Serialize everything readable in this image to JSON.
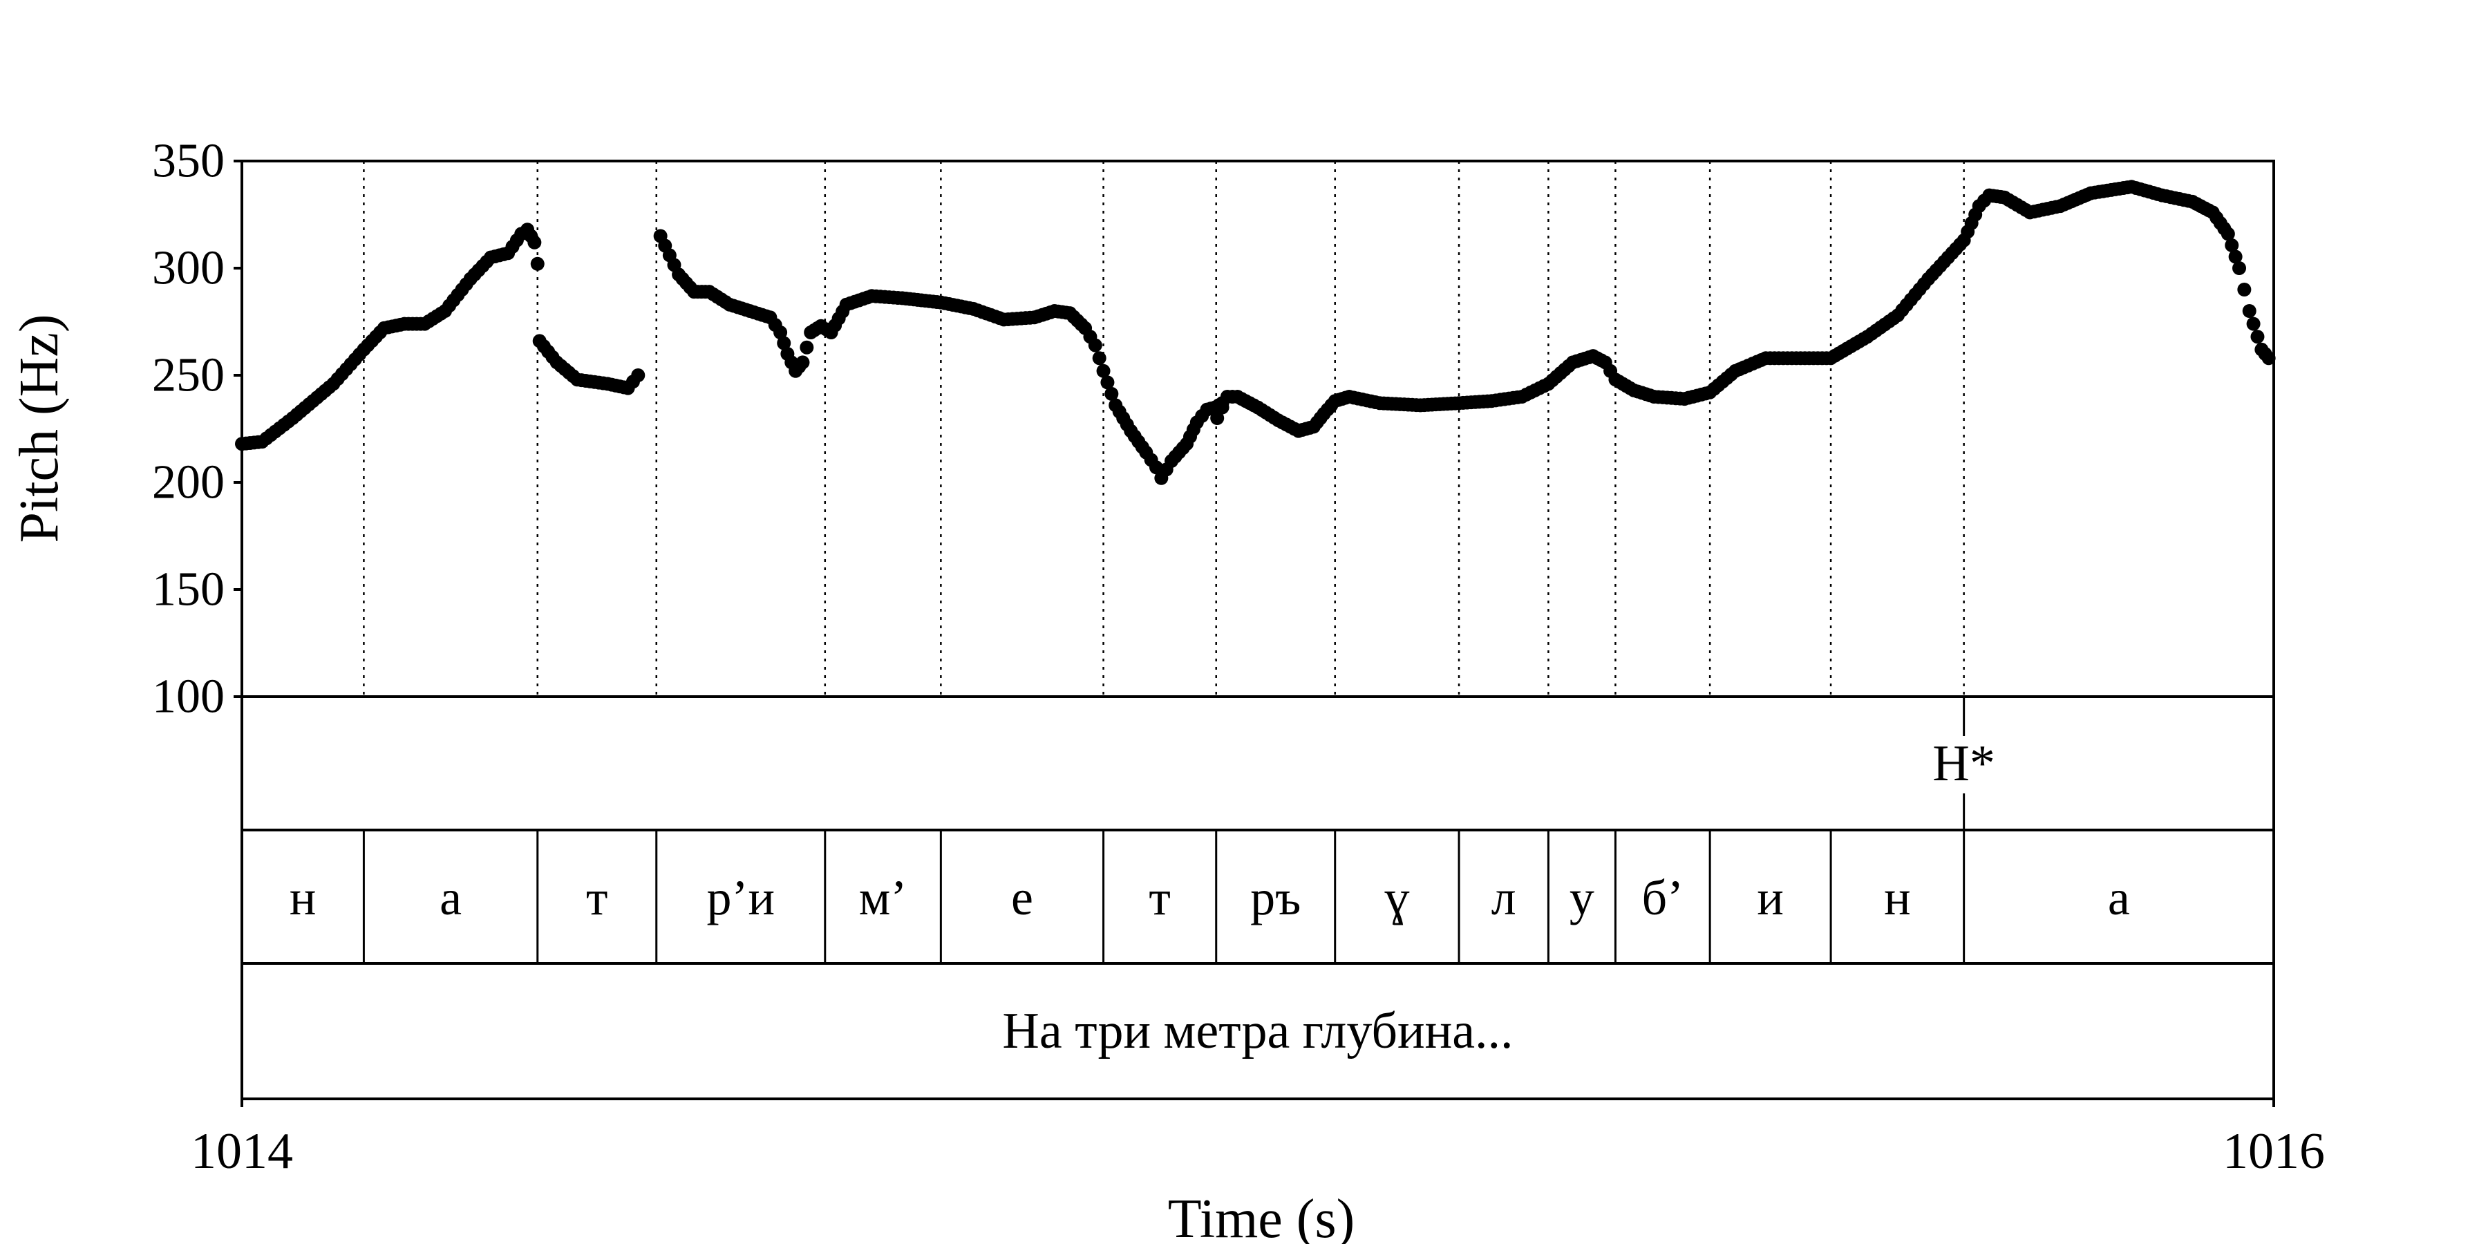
{
  "chart_data": {
    "type": "scatter",
    "xlabel": "Time (s)",
    "ylabel": "Pitch (Hz)",
    "xlim": [
      1014,
      1016
    ],
    "ylim": [
      100,
      350
    ],
    "x_ticks": [
      "1014",
      "1016"
    ],
    "y_ticks": [
      "350",
      "300",
      "250",
      "200",
      "150",
      "100"
    ],
    "boundaries": [
      1014.12,
      1014.291,
      1014.408,
      1014.574,
      1014.688,
      1014.848,
      1014.959,
      1015.076,
      1015.198,
      1015.286,
      1015.352,
      1015.445,
      1015.564,
      1015.695
    ],
    "tones": [
      {
        "time": 1015.695,
        "label": "H*"
      }
    ],
    "segments": [
      {
        "start": 1014.0,
        "end": 1014.12,
        "label": "н"
      },
      {
        "start": 1014.12,
        "end": 1014.291,
        "label": "а"
      },
      {
        "start": 1014.291,
        "end": 1014.408,
        "label": "т"
      },
      {
        "start": 1014.408,
        "end": 1014.574,
        "label": "р’и"
      },
      {
        "start": 1014.574,
        "end": 1014.688,
        "label": "м’"
      },
      {
        "start": 1014.688,
        "end": 1014.848,
        "label": "е"
      },
      {
        "start": 1014.848,
        "end": 1014.959,
        "label": "т"
      },
      {
        "start": 1014.959,
        "end": 1015.076,
        "label": "ръ"
      },
      {
        "start": 1015.076,
        "end": 1015.198,
        "label": "ɣ"
      },
      {
        "start": 1015.198,
        "end": 1015.286,
        "label": "л"
      },
      {
        "start": 1015.286,
        "end": 1015.352,
        "label": "у"
      },
      {
        "start": 1015.352,
        "end": 1015.445,
        "label": "б’"
      },
      {
        "start": 1015.445,
        "end": 1015.564,
        "label": "и"
      },
      {
        "start": 1015.564,
        "end": 1015.695,
        "label": "н"
      },
      {
        "start": 1015.695,
        "end": 1016.0,
        "label": "а"
      }
    ],
    "sentence": "На три метра глубина...",
    "pitch_contour": [
      [
        [
          1014.0,
          218
        ],
        [
          1014.02,
          219
        ],
        [
          1014.05,
          230
        ],
        [
          1014.09,
          246
        ],
        [
          1014.12,
          262
        ],
        [
          1014.14,
          272
        ],
        [
          1014.16,
          274
        ],
        [
          1014.18,
          274
        ],
        [
          1014.2,
          280
        ],
        [
          1014.225,
          295
        ],
        [
          1014.245,
          305
        ],
        [
          1014.262,
          307
        ],
        [
          1014.275,
          316
        ],
        [
          1014.281,
          318
        ],
        [
          1014.288,
          312
        ],
        [
          1014.291,
          302
        ]
      ],
      [
        [
          1014.293,
          266
        ],
        [
          1014.31,
          256
        ],
        [
          1014.33,
          248
        ],
        [
          1014.36,
          246
        ],
        [
          1014.38,
          244
        ],
        [
          1014.39,
          250
        ]
      ],
      [
        [
          1014.412,
          315
        ],
        [
          1014.43,
          297
        ],
        [
          1014.445,
          289
        ],
        [
          1014.46,
          289
        ],
        [
          1014.48,
          283
        ],
        [
          1014.5,
          280
        ],
        [
          1014.52,
          277
        ],
        [
          1014.53,
          270
        ],
        [
          1014.537,
          260
        ],
        [
          1014.545,
          252
        ],
        [
          1014.552,
          256
        ],
        [
          1014.56,
          270
        ],
        [
          1014.57,
          273
        ],
        [
          1014.58,
          270
        ],
        [
          1014.595,
          283
        ],
        [
          1014.62,
          287
        ],
        [
          1014.65,
          286
        ],
        [
          1014.688,
          284
        ],
        [
          1014.72,
          281
        ],
        [
          1014.75,
          276
        ],
        [
          1014.78,
          277
        ],
        [
          1014.8,
          280
        ],
        [
          1014.815,
          279
        ],
        [
          1014.83,
          272
        ],
        [
          1014.84,
          264
        ],
        [
          1014.848,
          252
        ],
        [
          1014.86,
          236
        ],
        [
          1014.875,
          224
        ],
        [
          1014.89,
          214
        ],
        [
          1014.9,
          207
        ],
        [
          1014.905,
          202
        ],
        [
          1014.915,
          210
        ],
        [
          1014.93,
          218
        ],
        [
          1014.94,
          228
        ],
        [
          1014.95,
          234
        ],
        [
          1014.958,
          235
        ],
        [
          1014.965,
          237
        ]
      ],
      [
        [
          1014.96,
          230
        ],
        [
          1014.97,
          240
        ],
        [
          1014.98,
          240
        ],
        [
          1015.0,
          235
        ],
        [
          1015.02,
          229
        ],
        [
          1015.04,
          224
        ],
        [
          1015.055,
          226
        ],
        [
          1015.065,
          232
        ],
        [
          1015.076,
          238
        ],
        [
          1015.09,
          240
        ],
        [
          1015.12,
          237
        ],
        [
          1015.16,
          236
        ],
        [
          1015.198,
          237
        ],
        [
          1015.23,
          238
        ],
        [
          1015.26,
          240
        ],
        [
          1015.286,
          246
        ],
        [
          1015.31,
          256
        ],
        [
          1015.33,
          259
        ],
        [
          1015.342,
          256
        ],
        [
          1015.352,
          248
        ],
        [
          1015.37,
          243
        ],
        [
          1015.39,
          240
        ],
        [
          1015.42,
          239
        ],
        [
          1015.445,
          242
        ],
        [
          1015.47,
          252
        ],
        [
          1015.5,
          258
        ],
        [
          1015.53,
          258
        ],
        [
          1015.564,
          258
        ],
        [
          1015.6,
          268
        ],
        [
          1015.63,
          278
        ],
        [
          1015.66,
          295
        ],
        [
          1015.695,
          313
        ],
        [
          1015.71,
          329
        ],
        [
          1015.72,
          334
        ],
        [
          1015.735,
          333
        ],
        [
          1015.76,
          326
        ],
        [
          1015.79,
          329
        ],
        [
          1015.82,
          335
        ],
        [
          1015.86,
          338
        ],
        [
          1015.89,
          334
        ],
        [
          1015.92,
          331
        ],
        [
          1015.94,
          326
        ],
        [
          1015.955,
          316
        ],
        [
          1015.966,
          300
        ],
        [
          1015.976,
          280
        ],
        [
          1015.988,
          262
        ],
        [
          1015.995,
          258
        ]
      ]
    ]
  }
}
